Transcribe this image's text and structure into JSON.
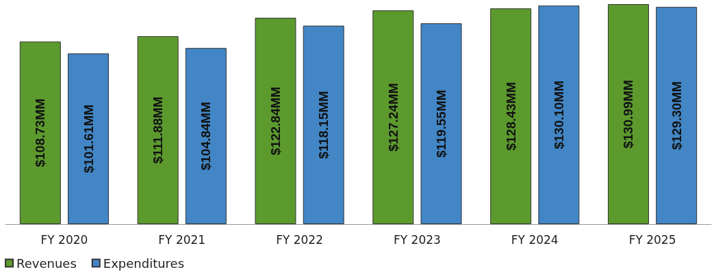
{
  "chart_data": {
    "type": "bar",
    "categories": [
      "FY 2020",
      "FY 2021",
      "FY 2022",
      "FY 2023",
      "FY 2024",
      "FY 2025"
    ],
    "series": [
      {
        "name": "Revenues",
        "color": "#5c9a2e",
        "values": [
          108.73,
          111.88,
          122.84,
          127.24,
          128.43,
          130.99
        ],
        "value_labels": [
          "$108.73MM",
          "$111.88MM",
          "$122.84MM",
          "$127.24MM",
          "$128.43MM",
          "$130.99MM"
        ]
      },
      {
        "name": "Expenditures",
        "color": "#4286c6",
        "values": [
          101.61,
          104.84,
          118.15,
          119.55,
          130.1,
          129.3
        ],
        "value_labels": [
          "$101.61MM",
          "$104.84MM",
          "$118.15MM",
          "$119.55MM",
          "$130.10MM",
          "$129.30MM"
        ]
      }
    ],
    "grid": false,
    "legend": "bottom left"
  }
}
